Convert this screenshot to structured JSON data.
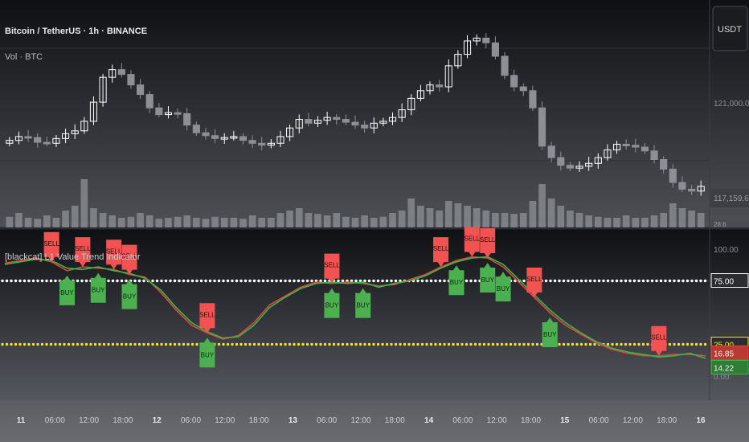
{
  "header": {
    "symbol_title": "Bitcoin / TetherUS · 1h · BINANCE",
    "volume_label": "Vol · BTC",
    "currency_button": "USDT"
  },
  "indicator": {
    "title": "[blackcat] L1 Value Trend Indicator"
  },
  "colors": {
    "background_top": "#101114",
    "background_bottom": "#5a5c63",
    "candle_up": "#ffffff",
    "candle_down": "#8d8f95",
    "volume": "#8e9096",
    "line_red": "#e0473d",
    "line_green": "#3bb54a",
    "sell_label": "#f25252",
    "buy_label": "#4caf50",
    "dots_white": "#ffffff",
    "dots_yellow": "#f5e51b"
  },
  "chart_data": [
    {
      "type": "candlestick",
      "title": "Bitcoin / TetherUS · 1h · BINANCE",
      "price_labels": [
        "121,000.00",
        "117,159.66",
        "28.6"
      ],
      "x_ticks": [
        "11",
        "06:00",
        "12:00",
        "18:00",
        "12",
        "06:00",
        "12:00",
        "18:00",
        "13",
        "06:00",
        "12:00",
        "18:00",
        "14",
        "06:00",
        "12:00",
        "18:00",
        "15",
        "06:00",
        "12:00",
        "18:00",
        "16"
      ],
      "close": [
        118700,
        118900,
        118850,
        118600,
        118550,
        118800,
        119050,
        119200,
        119700,
        120700,
        122000,
        122400,
        122150,
        121600,
        121100,
        120400,
        120050,
        120150,
        120100,
        119500,
        119100,
        118950,
        118800,
        118850,
        118900,
        118700,
        118550,
        118450,
        118550,
        118900,
        119350,
        119800,
        119600,
        119750,
        119900,
        119800,
        119650,
        119500,
        119350,
        119600,
        119700,
        119900,
        120300,
        120900,
        121300,
        121600,
        121500,
        122600,
        123200,
        123900,
        124050,
        123800,
        123100,
        122100,
        121500,
        121300,
        120400,
        118400,
        117800,
        117400,
        117250,
        117350,
        117500,
        117800,
        118200,
        118500,
        118450,
        118350,
        118150,
        117700,
        117200,
        116500,
        116150,
        116050,
        116300
      ],
      "volume": [
        0.22,
        0.3,
        0.2,
        0.18,
        0.25,
        0.2,
        0.35,
        0.45,
        1.0,
        0.4,
        0.3,
        0.25,
        0.2,
        0.22,
        0.3,
        0.25,
        0.18,
        0.2,
        0.22,
        0.25,
        0.2,
        0.18,
        0.22,
        0.2,
        0.2,
        0.18,
        0.25,
        0.2,
        0.2,
        0.3,
        0.35,
        0.4,
        0.3,
        0.28,
        0.25,
        0.3,
        0.22,
        0.2,
        0.25,
        0.2,
        0.22,
        0.3,
        0.35,
        0.6,
        0.45,
        0.4,
        0.35,
        0.55,
        0.5,
        0.45,
        0.4,
        0.35,
        0.3,
        0.3,
        0.28,
        0.3,
        0.55,
        0.9,
        0.6,
        0.45,
        0.35,
        0.3,
        0.25,
        0.22,
        0.2,
        0.2,
        0.25,
        0.2,
        0.2,
        0.25,
        0.3,
        0.5,
        0.4,
        0.35,
        0.3
      ]
    },
    {
      "type": "line",
      "title": "[blackcat] L1 Value Trend Indicator",
      "ylim": [
        0,
        100
      ],
      "y_labels": [
        "100.00",
        "75.00",
        "25.00",
        "16.85",
        "14.22",
        "0.00"
      ],
      "levels": [
        75,
        25
      ],
      "series": [
        {
          "values": [
            89,
            91,
            93,
            90,
            83,
            86,
            85,
            84,
            80,
            78,
            66,
            52,
            40,
            34,
            29,
            32,
            42,
            56,
            63,
            70,
            74,
            73,
            74,
            73,
            71,
            72,
            76,
            80,
            86,
            91,
            94,
            93,
            86,
            74,
            62,
            50,
            40,
            33,
            26,
            21,
            18,
            16,
            16,
            17,
            17,
            16
          ]
        },
        {
          "values": [
            88,
            90,
            92,
            91,
            85,
            84,
            86,
            83,
            81,
            77,
            68,
            54,
            42,
            35,
            30,
            31,
            40,
            54,
            62,
            69,
            73,
            74,
            73,
            74,
            70,
            73,
            75,
            79,
            85,
            90,
            93,
            94,
            88,
            76,
            64,
            52,
            42,
            34,
            27,
            22,
            19,
            17,
            15,
            16,
            18,
            14
          ]
        }
      ],
      "signals": [
        {
          "label": "SELL",
          "i": 3
        },
        {
          "label": "SELL",
          "i": 5
        },
        {
          "label": "SELL",
          "i": 7
        },
        {
          "label": "SELL",
          "i": 8
        },
        {
          "label": "BUY",
          "i": 4
        },
        {
          "label": "BUY",
          "i": 6
        },
        {
          "label": "BUY",
          "i": 8
        },
        {
          "label": "SELL",
          "i": 13
        },
        {
          "label": "BUY",
          "i": 13
        },
        {
          "label": "SELL",
          "i": 21
        },
        {
          "label": "BUY",
          "i": 21
        },
        {
          "label": "BUY",
          "i": 23
        },
        {
          "label": "SELL",
          "i": 28
        },
        {
          "label": "SELL",
          "i": 30
        },
        {
          "label": "SELL",
          "i": 31
        },
        {
          "label": "SELL",
          "i": 34
        },
        {
          "label": "BUY",
          "i": 29
        },
        {
          "label": "BUY",
          "i": 31
        },
        {
          "label": "BUY",
          "i": 32
        },
        {
          "label": "BUY",
          "i": 35
        },
        {
          "label": "SELL",
          "i": 42
        },
        {
          "label": "SELL",
          "i": 54
        },
        {
          "label": "SELL",
          "i": 56
        },
        {
          "label": "SELL",
          "i": 58
        },
        {
          "label": "SELL",
          "i": 60
        },
        {
          "label": "BUY",
          "i": 53
        },
        {
          "label": "BUY",
          "i": 55
        },
        {
          "label": "BUY",
          "i": 56
        },
        {
          "label": "BUY",
          "i": 62
        }
      ]
    }
  ]
}
